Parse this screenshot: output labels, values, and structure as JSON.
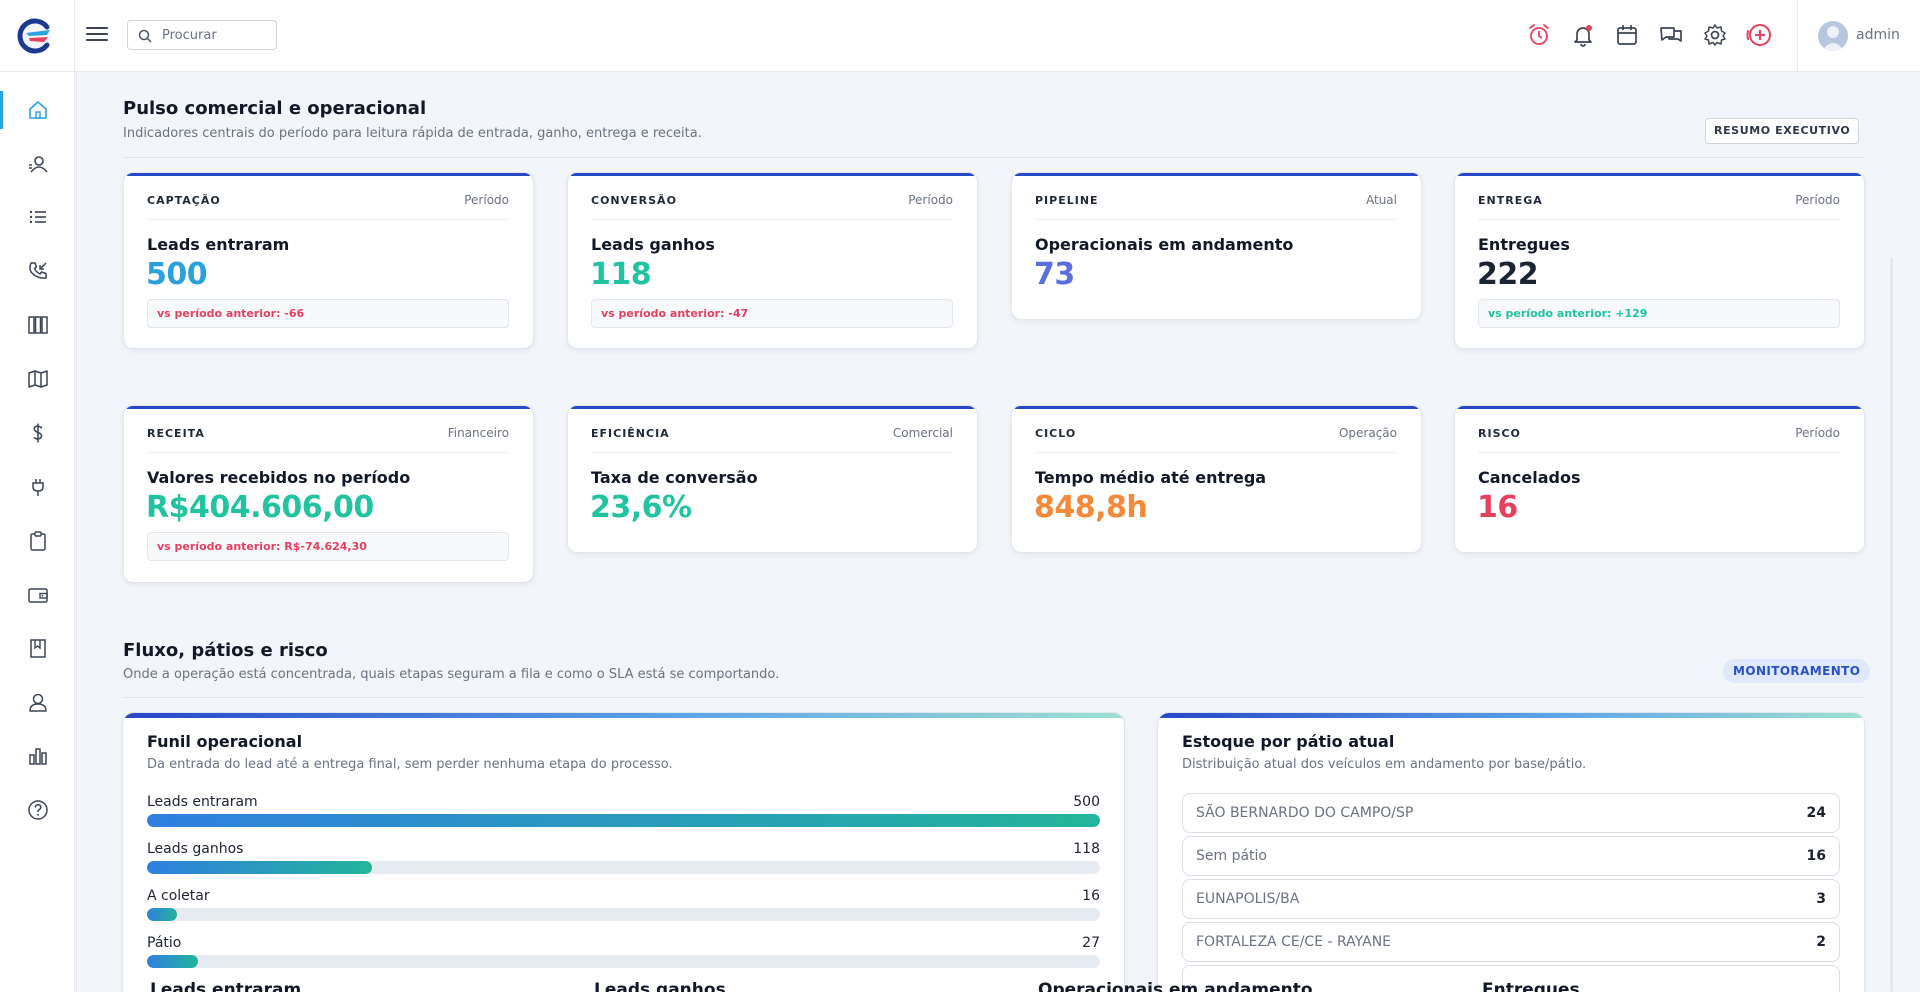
{
  "colors": {
    "accent": "#2748c8",
    "active_nav": "#2aa3e0",
    "negative": "#e5405e",
    "positive": "#1fc3a0",
    "captacao_value": "#2ba1dc",
    "ganhos_value": "#22c3a0",
    "pipeline_value": "#5b6ee0",
    "entregas_value": "#1b2432",
    "ciclo_value": "#f5893a",
    "risco_value": "#e5405e"
  },
  "search": {
    "placeholder": "Procurar"
  },
  "topbar": {
    "icons": [
      "alarm-clock-icon",
      "bell-icon",
      "calendar-icon",
      "chat-icon",
      "gear-icon",
      "add-circle-icon"
    ],
    "user": "admin"
  },
  "sidebar": {
    "items": [
      "home-icon",
      "contacts-icon",
      "list-icon",
      "phone-incoming-icon",
      "columns-icon",
      "map-icon",
      "dollar-icon",
      "plug-icon",
      "clipboard-icon",
      "wallet-icon",
      "bookmark-icon",
      "user-icon",
      "bar-chart-icon",
      "help-icon"
    ]
  },
  "section1": {
    "title": "Pulso comercial e operacional",
    "subtitle": "Indicadores centrais do período para leitura rápida de entrada, ganho, entrega e receita.",
    "badge": "RESUMO EXECUTIVO"
  },
  "kpis": [
    {
      "category": "CAPTAÇÃO",
      "scope": "Período",
      "title": "Leads entraram",
      "value": "500",
      "comparison": "vs período anterior: -66",
      "trend": "negative"
    },
    {
      "category": "CONVERSÃO",
      "scope": "Período",
      "title": "Leads ganhos",
      "value": "118",
      "comparison": "vs período anterior: -47",
      "trend": "negative"
    },
    {
      "category": "PIPELINE",
      "scope": "Atual",
      "title": "Operacionais em andamento",
      "value": "73"
    },
    {
      "category": "ENTREGA",
      "scope": "Período",
      "title": "Entregues",
      "value": "222",
      "comparison": "vs período anterior: +129",
      "trend": "positive"
    },
    {
      "category": "RECEITA",
      "scope": "Financeiro",
      "title": "Valores recebidos no período",
      "value": "R$404.606,00",
      "comparison": "vs período anterior: R$-74.624,30",
      "trend": "negative"
    },
    {
      "category": "EFICIÊNCIA",
      "scope": "Comercial",
      "title": "Taxa de conversão",
      "value": "23,6%"
    },
    {
      "category": "CICLO",
      "scope": "Operação",
      "title": "Tempo médio até entrega",
      "value": "848,8h"
    },
    {
      "category": "RISCO",
      "scope": "Período",
      "title": "Cancelados",
      "value": "16"
    }
  ],
  "section2": {
    "title": "Fluxo, pátios e risco",
    "subtitle": "Onde a operação está concentrada, quais etapas seguram a fila e como o SLA está se comportando.",
    "badge": "MONITORAMENTO"
  },
  "funnel": {
    "title": "Funil operacional",
    "subtitle": "Da entrada do lead até a entrega final, sem perder nenhuma etapa do processo.",
    "max": 500,
    "rows": [
      {
        "label": "Leads entraram",
        "value": 500
      },
      {
        "label": "Leads ganhos",
        "value": 118
      },
      {
        "label": "A coletar",
        "value": 16
      },
      {
        "label": "Pátio",
        "value": 27
      }
    ]
  },
  "yards": {
    "title": "Estoque por pátio atual",
    "subtitle": "Distribuição atual dos veículos em andamento por base/pátio.",
    "rows": [
      {
        "name": "SÃO BERNARDO DO CAMPO/SP",
        "count": "24"
      },
      {
        "name": "Sem pátio",
        "count": "16"
      },
      {
        "name": "EUNAPOLIS/BA",
        "count": "3"
      },
      {
        "name": "FORTALEZA CE/CE - RAYANE",
        "count": "2"
      }
    ]
  },
  "peek": [
    "Leads entraram",
    "Leads ganhos",
    "Operacionais em andamento",
    "Entregues"
  ]
}
